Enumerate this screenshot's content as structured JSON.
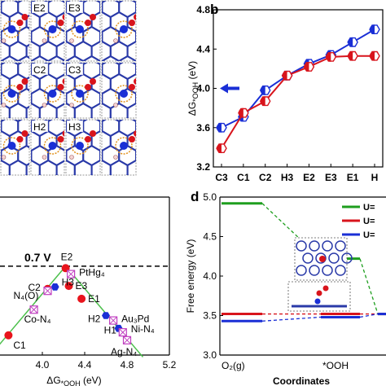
{
  "panel_labels": {
    "b": "b",
    "d": "d"
  },
  "structures": {
    "labels": [
      "E2",
      "E3",
      "C2",
      "C3",
      "H2",
      "H3"
    ]
  },
  "chart_data": [
    {
      "id": "b",
      "type": "line",
      "ylabel": "ΔG",
      "ylabel_sub": "*OOH",
      "yunit": " (eV)",
      "categories": [
        "C3",
        "C1",
        "C2",
        "H3",
        "E2",
        "E3",
        "E1",
        "H"
      ],
      "ylim": [
        3.2,
        4.8
      ],
      "yticks": [
        "3.2",
        "3.6",
        "4.0",
        "4.4",
        "4.8"
      ],
      "series": [
        {
          "color": "#1a2fd6",
          "values": [
            3.6,
            3.71,
            3.98,
            4.13,
            4.25,
            4.34,
            4.47,
            4.6
          ]
        },
        {
          "color": "#d8141c",
          "values": [
            3.39,
            3.75,
            3.87,
            4.13,
            4.22,
            4.32,
            4.33,
            4.33
          ]
        }
      ]
    },
    {
      "id": "c",
      "type": "scatter",
      "annotation": "0.7 V",
      "xlabel": "ΔG",
      "xlabel_sub": "*OOH",
      "xunit": " (eV)",
      "xlim": [
        3.6,
        5.2
      ],
      "xticks": [
        "4.0",
        "4.4",
        "4.8",
        "5.2"
      ],
      "ylim": [
        -1.6,
        0.0
      ],
      "dashed_level": -0.7,
      "volcano_peak_x": 4.22,
      "points": [
        {
          "label": "E2",
          "x": 4.22,
          "y": -0.72,
          "kind": "red-circle"
        },
        {
          "label": "E3",
          "x": 4.25,
          "y": -0.9,
          "kind": "red-circle"
        },
        {
          "label": "E1",
          "x": 4.37,
          "y": -1.03,
          "kind": "red-circle"
        },
        {
          "label": "C2",
          "x": 4.05,
          "y": -0.93,
          "kind": "red-circle"
        },
        {
          "label": "C1",
          "x": 3.68,
          "y": -1.4,
          "kind": "red-circle"
        },
        {
          "label": "H3",
          "x": 4.12,
          "y": -0.91,
          "kind": "blue-hexagon"
        },
        {
          "label": "H2",
          "x": 4.6,
          "y": -1.2,
          "kind": "blue-hexagon"
        },
        {
          "label": "H1",
          "x": 4.72,
          "y": -1.33,
          "kind": "blue-hexagon"
        },
        {
          "label": "PtHg₄",
          "x": 4.27,
          "y": -0.78,
          "kind": "magenta-box"
        },
        {
          "label": "N₄(O)",
          "x": 4.05,
          "y": -0.95,
          "kind": "magenta-box"
        },
        {
          "label": "Co-N₄",
          "x": 3.92,
          "y": -1.14,
          "kind": "magenta-box"
        },
        {
          "label": "Au₃Pd",
          "x": 4.67,
          "y": -1.25,
          "kind": "magenta-box"
        },
        {
          "label": "Ni-N₄",
          "x": 4.76,
          "y": -1.37,
          "kind": "magenta-box"
        },
        {
          "label": "Ag-N₄",
          "x": 4.8,
          "y": -1.45,
          "kind": "magenta-box"
        }
      ]
    },
    {
      "id": "d",
      "type": "line",
      "ylabel": "Free energy (eV)",
      "xlabel": "Coordinates",
      "ylim": [
        3.0,
        5.0
      ],
      "yticks": [
        "3.0",
        "3.5",
        "4.0",
        "4.5",
        "5.0"
      ],
      "states": [
        "O₂(g)",
        "*OOH"
      ],
      "series": [
        {
          "name": "U=",
          "color": "#1e9e1e",
          "values": [
            4.92,
            4.22,
            3.52
          ]
        },
        {
          "name": "U=",
          "color": "#d8141c",
          "values": [
            3.52,
            3.52,
            3.52
          ]
        },
        {
          "name": "U=",
          "color": "#1a2fd6",
          "values": [
            3.43,
            3.48,
            3.52
          ]
        }
      ]
    }
  ]
}
